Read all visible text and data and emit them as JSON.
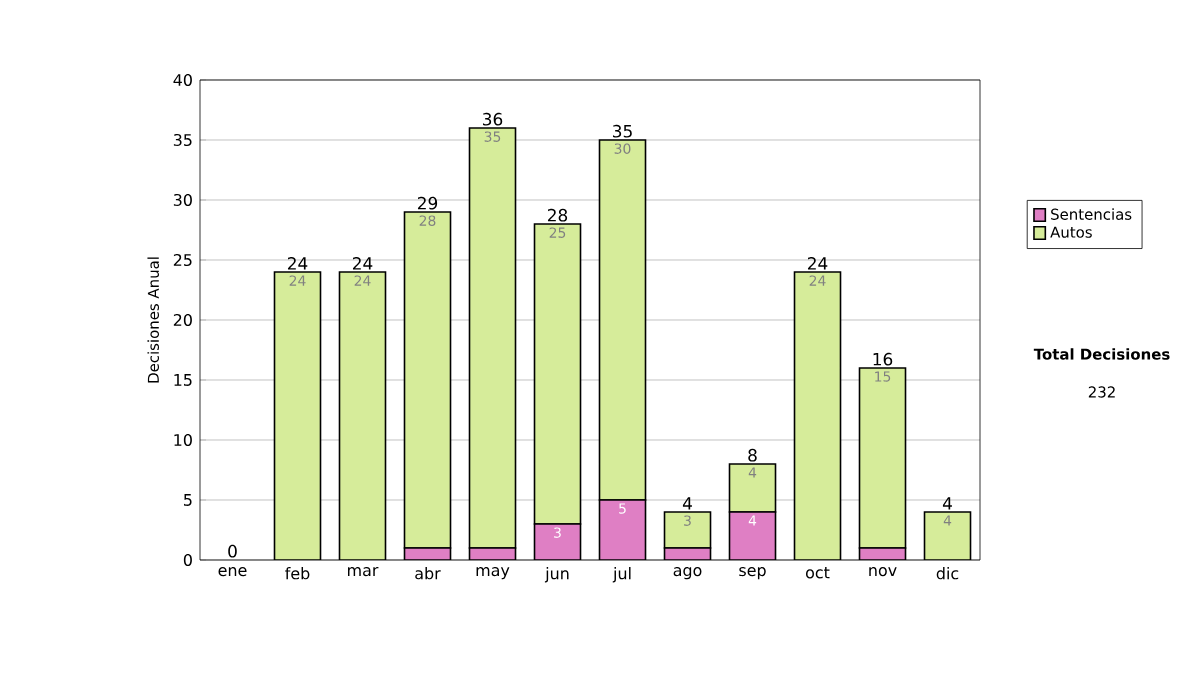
{
  "chart_data": {
    "type": "bar",
    "stacked": true,
    "ylabel": "Decisiones Anual",
    "categories": [
      "ene",
      "feb",
      "mar",
      "abr",
      "may",
      "jun",
      "jul",
      "ago",
      "sep",
      "oct",
      "nov",
      "dic"
    ],
    "series": [
      {
        "name": "Sentencias",
        "color": "#df7fc4",
        "values": [
          0,
          0,
          0,
          1,
          1,
          3,
          5,
          1,
          4,
          0,
          1,
          0
        ],
        "value_labels": [
          null,
          null,
          null,
          null,
          null,
          "3",
          "5",
          null,
          "4",
          null,
          null,
          null
        ]
      },
      {
        "name": "Autos",
        "color": "#d6ec9a",
        "values": [
          0,
          24,
          24,
          28,
          35,
          25,
          30,
          3,
          4,
          24,
          15,
          4
        ],
        "value_labels": [
          null,
          "24",
          "24",
          "28",
          "35",
          "25",
          "30",
          "3",
          "4",
          "24",
          "15",
          "4"
        ]
      }
    ],
    "totals": [
      "0",
      "24",
      "24",
      "29",
      "36",
      "28",
      "35",
      "4",
      "8",
      "24",
      "16",
      "4"
    ],
    "ylim": [
      0,
      40
    ],
    "yticks": [
      0,
      5,
      10,
      15,
      20,
      25,
      30,
      35,
      40
    ],
    "grid": "y",
    "legend": "right",
    "annotations": [
      "Total Decisiones",
      "232"
    ]
  }
}
